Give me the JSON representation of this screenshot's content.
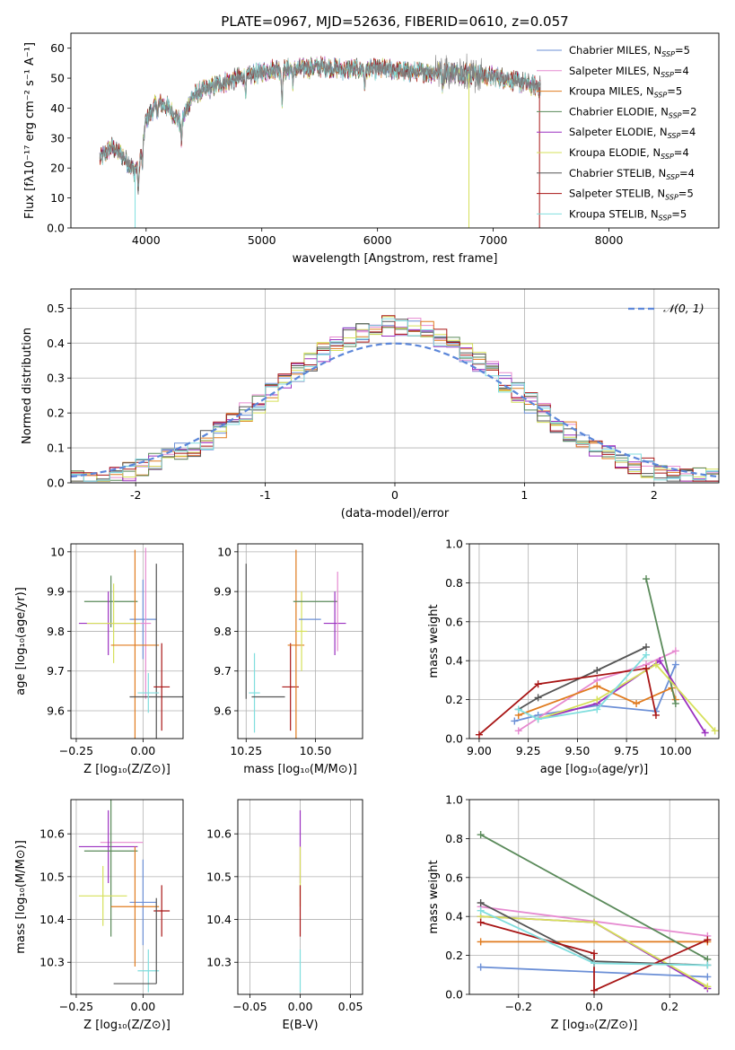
{
  "palette": {
    "Chabrier MILES": "#6b8fd6",
    "Salpeter MILES": "#e68ad0",
    "Kroupa MILES": "#e07b1f",
    "Chabrier ELODIE": "#5a8a5a",
    "Salpeter ELODIE": "#9b30c0",
    "Kroupa ELODIE": "#d6e05a",
    "Chabrier STELIB": "#555555",
    "Salpeter STELIB": "#a81515",
    "Kroupa STELIB": "#80dede"
  },
  "chart_data": [
    {
      "id": "spectrum",
      "type": "line",
      "title": "PLATE=0967, MJD=52636, FIBERID=0610, z=0.057",
      "xlabel": "wavelength [Angstrom, rest frame]",
      "ylabel": "Flux [fλ10⁻¹⁷ erg cm⁻² s⁻¹ A⁻¹]",
      "xlim": [
        3350,
        8950
      ],
      "ylim": [
        0,
        65
      ],
      "xticks": [
        4000,
        5000,
        6000,
        7000,
        8000
      ],
      "yticks": [
        0,
        10,
        20,
        30,
        40,
        50,
        60
      ],
      "continuum": {
        "x": [
          3600,
          3700,
          3800,
          3900,
          3950,
          4000,
          4100,
          4200,
          4300,
          4400,
          4500,
          4700,
          4900,
          5100,
          5300,
          5500,
          5700,
          5900,
          6100,
          6300,
          6500,
          6700,
          6900,
          7100,
          7300,
          7400
        ],
        "y": [
          23,
          27,
          24,
          19,
          24,
          36,
          42,
          40,
          35,
          44,
          46,
          49,
          51,
          53,
          53,
          54,
          53,
          53,
          53,
          52,
          52,
          52,
          51,
          50,
          48,
          47
        ]
      },
      "legend": [
        {
          "name": "Chabrier MILES",
          "n_ssp": 5
        },
        {
          "name": "Salpeter MILES",
          "n_ssp": 4
        },
        {
          "name": "Kroupa MILES",
          "n_ssp": 5
        },
        {
          "name": "Chabrier ELODIE",
          "n_ssp": 2
        },
        {
          "name": "Salpeter ELODIE",
          "n_ssp": 4
        },
        {
          "name": "Kroupa ELODIE",
          "n_ssp": 4
        },
        {
          "name": "Chabrier STELIB",
          "n_ssp": 4
        },
        {
          "name": "Salpeter STELIB",
          "n_ssp": 5
        },
        {
          "name": "Kroupa STELIB",
          "n_ssp": 5
        }
      ],
      "legend_placement": "upper-right",
      "nssp_label": "N",
      "nssp_sub": "SSP"
    },
    {
      "id": "residuals",
      "type": "histogram",
      "xlabel": "(data-model)/error",
      "ylabel": "Normed distribution",
      "xlim": [
        -2.5,
        2.5
      ],
      "ylim": [
        0,
        0.555
      ],
      "xticks": [
        -2,
        -1,
        0,
        1,
        2
      ],
      "yticks": [
        0.0,
        0.1,
        0.2,
        0.3,
        0.4,
        0.5
      ],
      "grid": true,
      "bin_width": 0.1,
      "gaussian_label": "𝒩(0, 1)",
      "legend_placement": "upper-right"
    },
    {
      "id": "age_vs_z",
      "type": "errorbar",
      "xlabel": "Z [log₁₀(Z/Z⊙)]",
      "ylabel": "age  [log₁₀(age/yr)]",
      "xlim": [
        -0.27,
        0.15
      ],
      "ylim": [
        9.53,
        10.02
      ],
      "xticks": [
        -0.25,
        0.0
      ],
      "xticklabels": [
        "−0.25",
        "0.00"
      ],
      "yticks": [
        9.6,
        9.7,
        9.8,
        9.9,
        10.0
      ],
      "grid": true,
      "points": [
        {
          "model": "Chabrier ELODIE",
          "x": -0.12,
          "xerr": 0.1,
          "y": 9.875,
          "yerr": 0.065
        },
        {
          "model": "Salpeter ELODIE",
          "x": -0.13,
          "xerr": 0.11,
          "y": 9.82,
          "yerr": 0.08
        },
        {
          "model": "Kroupa ELODIE",
          "x": -0.11,
          "xerr": 0.1,
          "y": 9.82,
          "yerr": 0.1
        },
        {
          "model": "Chabrier MILES",
          "x": 0.0,
          "xerr": 0.05,
          "y": 9.83,
          "yerr": 0.1
        },
        {
          "model": "Salpeter MILES",
          "x": 0.01,
          "xerr": 0.02,
          "y": 9.82,
          "yerr": 0.19
        },
        {
          "model": "Kroupa MILES",
          "x": -0.03,
          "xerr": 0.09,
          "y": 9.765,
          "yerr": 0.24
        },
        {
          "model": "Chabrier STELIB",
          "x": 0.05,
          "xerr": 0.1,
          "y": 9.635,
          "yerr": 0.335
        },
        {
          "model": "Kroupa STELIB",
          "x": 0.02,
          "xerr": 0.04,
          "y": 9.645,
          "yerr": 0.05
        },
        {
          "model": "Salpeter STELIB",
          "x": 0.07,
          "xerr": 0.03,
          "y": 9.66,
          "yerr": 0.11
        }
      ]
    },
    {
      "id": "age_vs_mass",
      "type": "errorbar",
      "xlabel": "mass [log₁₀(M/M⊙)]",
      "ylabel": "",
      "xlim": [
        10.22,
        10.67
      ],
      "ylim": [
        9.53,
        10.02
      ],
      "xticks": [
        10.25,
        10.5
      ],
      "xticklabels": [
        "10.25",
        "10.50"
      ],
      "yticks": [
        9.6,
        9.7,
        9.8,
        9.9,
        10.0
      ],
      "grid": true,
      "points": [
        {
          "model": "Chabrier STELIB",
          "x": 10.25,
          "xerr": 0.0,
          "y": 9.8,
          "yerr": 0.17
        },
        {
          "model": "Kroupa STELIB",
          "x": 10.28,
          "xerr": 0.02,
          "y": 9.645,
          "yerr": 0.1
        },
        {
          "model": "Chabrier STELIB",
          "x": 10.33,
          "xerr": 0.06,
          "y": 9.635,
          "yerr": 0.0
        },
        {
          "model": "Salpeter STELIB",
          "x": 10.41,
          "xerr": 0.03,
          "y": 9.66,
          "yerr": 0.11
        },
        {
          "model": "Kroupa MILES",
          "x": 10.43,
          "xerr": 0.03,
          "y": 9.765,
          "yerr": 0.24
        },
        {
          "model": "Kroupa ELODIE",
          "x": 10.45,
          "xerr": 0.02,
          "y": 9.8,
          "yerr": 0.1
        },
        {
          "model": "Chabrier ELODIE",
          "x": 10.5,
          "xerr": 0.08,
          "y": 9.875,
          "yerr": 0.0
        },
        {
          "model": "Chabrier MILES",
          "x": 10.48,
          "xerr": 0.04,
          "y": 9.83,
          "yerr": 0.0
        },
        {
          "model": "Salpeter ELODIE",
          "x": 10.57,
          "xerr": 0.04,
          "y": 9.82,
          "yerr": 0.08
        },
        {
          "model": "Salpeter MILES",
          "x": 10.58,
          "xerr": 0.0,
          "y": 9.85,
          "yerr": 0.1
        }
      ]
    },
    {
      "id": "weight_vs_age",
      "type": "line",
      "xlabel": "age  [log₁₀(age/yr)]",
      "ylabel": "mass weight",
      "xlim": [
        8.95,
        10.22
      ],
      "ylim": [
        0,
        1.0
      ],
      "xticks": [
        9.0,
        9.25,
        9.5,
        9.75,
        10.0
      ],
      "xticklabels": [
        "9.00",
        "9.25",
        "9.50",
        "9.75",
        "10.00"
      ],
      "yticks": [
        0.0,
        0.2,
        0.4,
        0.6,
        0.8,
        1.0
      ],
      "grid": true,
      "series": [
        {
          "model": "Chabrier MILES",
          "x": [
            9.18,
            9.3,
            9.6,
            9.9,
            10.0
          ],
          "y": [
            0.09,
            0.12,
            0.17,
            0.14,
            0.38
          ]
        },
        {
          "model": "Salpeter MILES",
          "x": [
            9.2,
            9.6,
            9.85,
            10.0
          ],
          "y": [
            0.04,
            0.3,
            0.38,
            0.45
          ]
        },
        {
          "model": "Kroupa MILES",
          "x": [
            9.2,
            9.6,
            9.8,
            9.98,
            10.0
          ],
          "y": [
            0.12,
            0.27,
            0.18,
            0.26,
            0.2
          ]
        },
        {
          "model": "Chabrier ELODIE",
          "x": [
            9.85,
            10.0
          ],
          "y": [
            0.82,
            0.18
          ]
        },
        {
          "model": "Salpeter ELODIE",
          "x": [
            9.3,
            9.6,
            9.92,
            10.15
          ],
          "y": [
            0.1,
            0.18,
            0.4,
            0.03
          ]
        },
        {
          "model": "Kroupa ELODIE",
          "x": [
            9.3,
            9.6,
            9.9,
            10.2
          ],
          "y": [
            0.1,
            0.2,
            0.38,
            0.04
          ]
        },
        {
          "model": "Chabrier STELIB",
          "x": [
            9.2,
            9.3,
            9.6,
            9.85
          ],
          "y": [
            0.15,
            0.21,
            0.35,
            0.47
          ]
        },
        {
          "model": "Salpeter STELIB",
          "x": [
            9.0,
            9.3,
            9.85,
            9.9
          ],
          "y": [
            0.02,
            0.28,
            0.36,
            0.12
          ]
        },
        {
          "model": "Kroupa STELIB",
          "x": [
            9.2,
            9.3,
            9.6,
            9.85
          ],
          "y": [
            0.15,
            0.1,
            0.15,
            0.43
          ]
        }
      ]
    },
    {
      "id": "mass_vs_z",
      "type": "errorbar",
      "xlabel": "Z [log₁₀(Z/Z⊙)]",
      "ylabel": "mass [log₁₀(M/M⊙)]",
      "xlim": [
        -0.27,
        0.15
      ],
      "ylim": [
        10.225,
        10.68
      ],
      "xticks": [
        -0.25,
        0.0
      ],
      "xticklabels": [
        "−0.25",
        "0.00"
      ],
      "yticks": [
        10.3,
        10.4,
        10.5,
        10.6
      ],
      "grid": true,
      "points": [
        {
          "model": "Salpeter MILES",
          "x": -0.08,
          "xerr": 0.08,
          "y": 10.58,
          "yerr": 0.0
        },
        {
          "model": "Salpeter ELODIE",
          "x": -0.13,
          "xerr": 0.11,
          "y": 10.57,
          "yerr": 0.085
        },
        {
          "model": "Chabrier ELODIE",
          "x": -0.12,
          "xerr": 0.1,
          "y": 10.56,
          "yerr": 0.2
        },
        {
          "model": "Kroupa ELODIE",
          "x": -0.15,
          "xerr": 0.09,
          "y": 10.455,
          "yerr": 0.07
        },
        {
          "model": "Chabrier MILES",
          "x": 0.0,
          "xerr": 0.05,
          "y": 10.44,
          "yerr": 0.1
        },
        {
          "model": "Kroupa MILES",
          "x": -0.03,
          "xerr": 0.09,
          "y": 10.43,
          "yerr": 0.14
        },
        {
          "model": "Salpeter STELIB",
          "x": 0.07,
          "xerr": 0.03,
          "y": 10.42,
          "yerr": 0.06
        },
        {
          "model": "Kroupa STELIB",
          "x": 0.02,
          "xerr": 0.04,
          "y": 10.28,
          "yerr": 0.05
        },
        {
          "model": "Chabrier STELIB",
          "x": -0.03,
          "xerr": 0.08,
          "y": 10.25,
          "yerr": 0.0
        },
        {
          "model": "Chabrier STELIB",
          "x": 0.05,
          "xerr": 0.0,
          "y": 10.35,
          "yerr": 0.1
        }
      ]
    },
    {
      "id": "mass_vs_ebv",
      "type": "errorbar",
      "xlabel": "E(B-V)",
      "ylabel": "",
      "xlim": [
        -0.062,
        0.062
      ],
      "ylim": [
        10.225,
        10.68
      ],
      "xticks": [
        -0.05,
        0.0,
        0.05
      ],
      "xticklabels": [
        "−0.05",
        "0.00",
        "0.05"
      ],
      "yticks": [
        10.3,
        10.4,
        10.5,
        10.6
      ],
      "grid": true,
      "points": [
        {
          "model": "Salpeter ELODIE",
          "x": 0.0,
          "xerr": 0.0,
          "y": 10.57,
          "yerr": 0.085
        },
        {
          "model": "Kroupa ELODIE",
          "x": 0.0,
          "xerr": 0.0,
          "y": 10.5,
          "yerr": 0.07
        },
        {
          "model": "Salpeter STELIB",
          "x": 0.0,
          "xerr": 0.0,
          "y": 10.42,
          "yerr": 0.06
        },
        {
          "model": "Kroupa STELIB",
          "x": 0.0,
          "xerr": 0.0,
          "y": 10.28,
          "yerr": 0.05
        }
      ]
    },
    {
      "id": "weight_vs_z",
      "type": "line",
      "xlabel": "Z [log₁₀(Z/Z⊙)]",
      "ylabel": "mass weight",
      "xlim": [
        -0.33,
        0.33
      ],
      "ylim": [
        0,
        1.0
      ],
      "xticks": [
        -0.2,
        0.0,
        0.2
      ],
      "xticklabels": [
        "−0.2",
        "0.0",
        "0.2"
      ],
      "yticks": [
        0.0,
        0.2,
        0.4,
        0.6,
        0.8,
        1.0
      ],
      "grid": true,
      "series": [
        {
          "model": "Chabrier MILES",
          "x": [
            -0.3,
            0.3
          ],
          "y": [
            0.14,
            0.09
          ]
        },
        {
          "model": "Salpeter MILES",
          "x": [
            -0.3,
            0.3
          ],
          "y": [
            0.45,
            0.3
          ]
        },
        {
          "model": "Kroupa MILES",
          "x": [
            -0.3,
            0.3
          ],
          "y": [
            0.27,
            0.27
          ]
        },
        {
          "model": "Chabrier ELODIE",
          "x": [
            -0.3,
            0.3
          ],
          "y": [
            0.82,
            0.18
          ]
        },
        {
          "model": "Salpeter ELODIE",
          "x": [
            -0.3,
            0.0,
            0.3
          ],
          "y": [
            0.4,
            0.37,
            0.03
          ]
        },
        {
          "model": "Kroupa ELODIE",
          "x": [
            -0.3,
            0.0,
            0.3
          ],
          "y": [
            0.4,
            0.37,
            0.04
          ]
        },
        {
          "model": "Chabrier STELIB",
          "x": [
            -0.3,
            0.0,
            0.3
          ],
          "y": [
            0.47,
            0.17,
            0.15
          ]
        },
        {
          "model": "Salpeter STELIB",
          "x": [
            -0.3,
            0.0,
            0.0,
            0.3
          ],
          "y": [
            0.37,
            0.21,
            0.02,
            0.28
          ]
        },
        {
          "model": "Kroupa STELIB",
          "x": [
            -0.3,
            0.0,
            0.3
          ],
          "y": [
            0.43,
            0.16,
            0.15
          ]
        }
      ]
    }
  ]
}
